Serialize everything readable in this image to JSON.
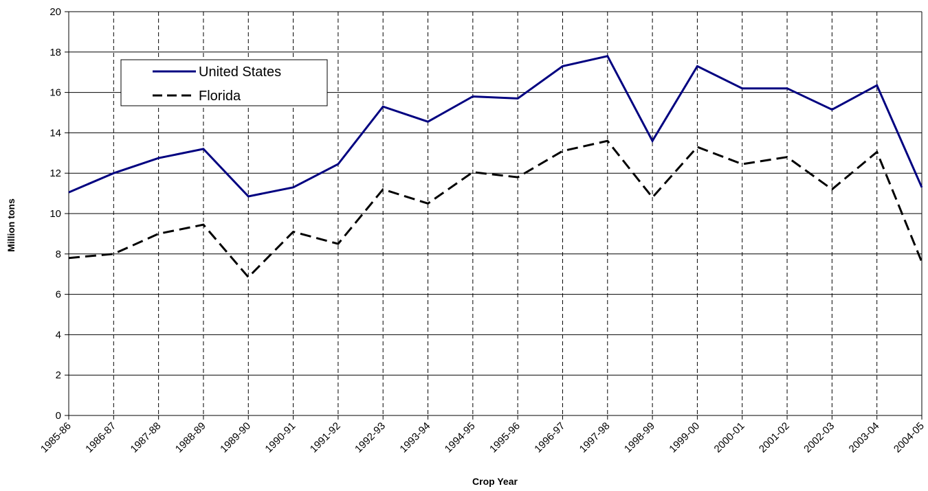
{
  "chart_data": {
    "type": "line",
    "title": "",
    "xlabel": "Crop Year",
    "ylabel": "Million tons",
    "ylim": [
      0,
      20
    ],
    "yticks": [
      0,
      2,
      4,
      6,
      8,
      10,
      12,
      14,
      16,
      18,
      20
    ],
    "categories": [
      "1985-86",
      "1986-87",
      "1987-88",
      "1988-89",
      "1989-90",
      "1990-91",
      "1991-92",
      "1992-93",
      "1993-94",
      "1994-95",
      "1995-96",
      "1996-97",
      "1997-98",
      "1998-99",
      "1999-00",
      "2000-01",
      "2001-02",
      "2002-03",
      "2003-04",
      "2004-05"
    ],
    "series": [
      {
        "name": "United States",
        "color": "#000080",
        "style": "solid",
        "values": [
          11.05,
          12.0,
          12.75,
          13.2,
          10.85,
          11.3,
          12.45,
          15.3,
          14.55,
          15.8,
          15.7,
          17.3,
          17.8,
          13.6,
          17.3,
          16.2,
          16.2,
          15.15,
          16.35,
          11.3
        ]
      },
      {
        "name": "Florida",
        "color": "#000000",
        "style": "dashed",
        "values": [
          7.8,
          8.0,
          9.0,
          9.45,
          6.85,
          9.1,
          8.5,
          11.2,
          10.5,
          12.05,
          11.8,
          13.1,
          13.6,
          10.8,
          13.3,
          12.45,
          12.8,
          11.2,
          13.05,
          7.6
        ]
      }
    ],
    "grid": true,
    "legend_position": "top-left"
  }
}
